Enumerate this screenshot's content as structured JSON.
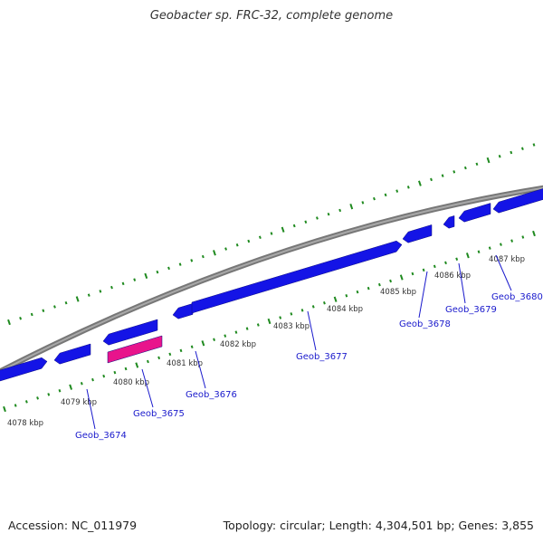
{
  "title": "Geobacter sp. FRC-32, complete genome",
  "footer": {
    "accession": "Accession: NC_011979",
    "stats": "Topology: circular; Length: 4,304,501 bp; Genes: 3,855"
  },
  "colors": {
    "gene_forward": "#1414e6",
    "gene_highlight": "#e8148c",
    "backbone": "#8a8a8a",
    "ticks": "#1f8a1f",
    "label": "#1a1acc",
    "kbp": "#333333"
  },
  "scale_labels": [
    "4078 kbp",
    "4079 kbp",
    "4080 kbp",
    "4081 kbp",
    "4082 kbp",
    "4083 kbp",
    "4084 kbp",
    "4085 kbp",
    "4086 kbp",
    "4087 kbp"
  ],
  "gene_labels": [
    "Geob_3674",
    "Geob_3675",
    "Geob_3676",
    "Geob_3677",
    "Geob_3678",
    "Geob_3679",
    "Geob_3680"
  ]
}
